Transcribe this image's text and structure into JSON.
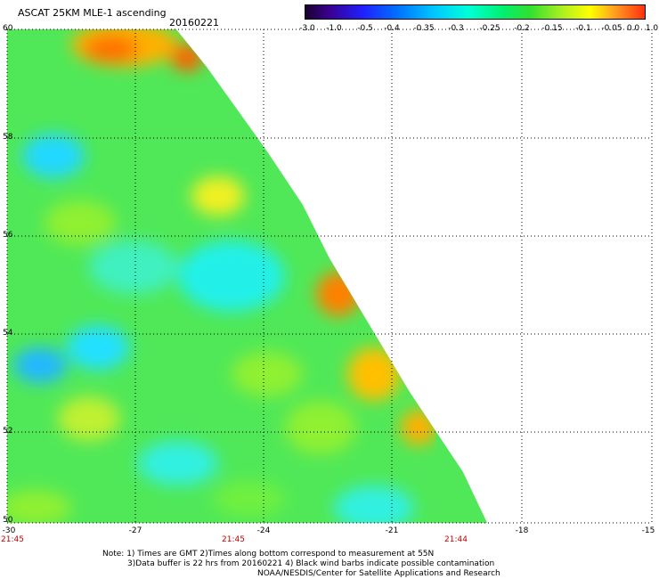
{
  "header": {
    "title": "ASCAT 25KM MLE-1 ascending",
    "date": "20160221"
  },
  "colorbar": {
    "labels": [
      "-3.0",
      "-1.0",
      "-0.5",
      "-0.4",
      "-0.35",
      "-0.3",
      "-0.25",
      "-0.2",
      "-0.15",
      "-0.1",
      "-0.05",
      "0.0",
      "1.0"
    ],
    "colors": [
      "#1a0030",
      "#3a0090",
      "#2020ff",
      "#0070ff",
      "#00c8ff",
      "#00ffd8",
      "#00f070",
      "#30e030",
      "#b0f020",
      "#ffff00",
      "#ffa020",
      "#ff3010"
    ]
  },
  "axes": {
    "lat_labels": [
      "60",
      "58",
      "56",
      "54",
      "52",
      "50"
    ],
    "lon_labels": [
      "-30",
      "-27",
      "-24",
      "-21",
      "-18",
      "-15"
    ],
    "time_labels": [
      "21:45",
      "21:45",
      "21:44"
    ]
  },
  "notes": {
    "line1": "Note: 1) Times are GMT 2)Times along bottom correspond to measurement at 55N",
    "line2": "3)Data buffer is 22 hrs from 20160221 4) Black wind barbs indicate possible contamination",
    "line3": "NOAA/NESDIS/Center for Satellite Applications and Research"
  }
}
